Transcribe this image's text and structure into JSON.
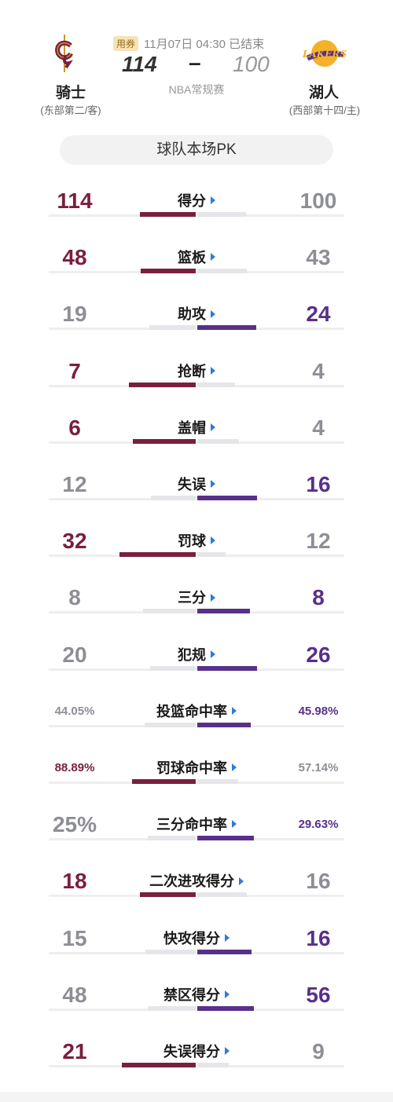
{
  "colors": {
    "cavs": "#7a1f3d",
    "lakers": "#58308a",
    "muted": "#8d8e96",
    "bar_bg": "#e6e6ea",
    "arrow": "#2e7ad9"
  },
  "header": {
    "coupon": "用券",
    "time_status": "11月07日 04:30 已结束",
    "league": "NBA常规赛",
    "dash": "–",
    "home": {
      "name": "骑士",
      "sub": "(东部第二/客)",
      "score": "114",
      "logo": "cavaliers-logo"
    },
    "away": {
      "name": "湖人",
      "sub": "(西部第十四/主)",
      "score": "100",
      "logo": "lakers-logo"
    }
  },
  "pk_title": "球队本场PK",
  "stats": [
    {
      "label": "得分",
      "left": "114",
      "right": "100",
      "winner": "L",
      "lval": 114,
      "rval": 100
    },
    {
      "label": "篮板",
      "left": "48",
      "right": "43",
      "winner": "L",
      "lval": 48,
      "rval": 43
    },
    {
      "label": "助攻",
      "left": "19",
      "right": "24",
      "winner": "R",
      "lval": 19,
      "rval": 24
    },
    {
      "label": "抢断",
      "left": "7",
      "right": "4",
      "winner": "L",
      "lval": 7,
      "rval": 4
    },
    {
      "label": "盖帽",
      "left": "6",
      "right": "4",
      "winner": "L",
      "lval": 6,
      "rval": 4
    },
    {
      "label": "失误",
      "left": "12",
      "right": "16",
      "winner": "R",
      "lval": 12,
      "rval": 16
    },
    {
      "label": "罚球",
      "left": "32",
      "right": "12",
      "winner": "L",
      "lval": 32,
      "rval": 12
    },
    {
      "label": "三分",
      "left": "8",
      "right": "8",
      "winner": "R",
      "lval": 8,
      "rval": 8
    },
    {
      "label": "犯规",
      "left": "20",
      "right": "26",
      "winner": "R",
      "lval": 20,
      "rval": 26
    },
    {
      "label": "投篮命中率",
      "left": "44.05%",
      "right": "45.98%",
      "winner": "R",
      "lval": 44.05,
      "rval": 45.98,
      "small": true
    },
    {
      "label": "罚球命中率",
      "left": "88.89%",
      "right": "57.14%",
      "winner": "L",
      "lval": 88.89,
      "rval": 57.14,
      "small": true
    },
    {
      "label": "三分命中率",
      "left": "25%",
      "right": "29.63%",
      "winner": "R",
      "lval": 25,
      "rval": 29.63,
      "small": true,
      "big_left": true
    },
    {
      "label": "二次进攻得分",
      "left": "18",
      "right": "16",
      "winner": "L",
      "lval": 18,
      "rval": 16
    },
    {
      "label": "快攻得分",
      "left": "15",
      "right": "16",
      "winner": "R",
      "lval": 15,
      "rval": 16
    },
    {
      "label": "禁区得分",
      "left": "48",
      "right": "56",
      "winner": "R",
      "lval": 48,
      "rval": 56
    },
    {
      "label": "失误得分",
      "left": "21",
      "right": "9",
      "winner": "L",
      "lval": 21,
      "rval": 9
    }
  ]
}
